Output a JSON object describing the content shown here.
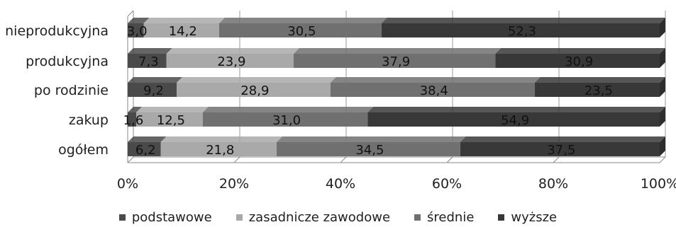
{
  "chart_data": {
    "type": "bar",
    "orientation": "horizontal",
    "stacked": "percent",
    "title": "",
    "xlabel": "",
    "ylabel": "",
    "categories": [
      "nieprodukcyjna",
      "produkcyjna",
      "po rodzinie",
      "zakup",
      "ogółem"
    ],
    "series": [
      {
        "name": "podstawowe",
        "values": [
          3.0,
          7.3,
          9.2,
          1.6,
          6.2
        ],
        "labels": [
          "3,0",
          "7,3",
          "9,2",
          "1,6",
          "6,2"
        ],
        "color": "#4a4a4a"
      },
      {
        "name": "zasadnicze zawodowe",
        "values": [
          14.2,
          23.9,
          28.9,
          12.5,
          21.8
        ],
        "labels": [
          "14,2",
          "23,9",
          "28,9",
          "12,5",
          "21,8"
        ],
        "color": "#a9a9a9"
      },
      {
        "name": "średnie",
        "values": [
          30.5,
          37.9,
          38.4,
          31.0,
          34.5
        ],
        "labels": [
          "30,5",
          "37,9",
          "38,4",
          "31,0",
          "34,5"
        ],
        "color": "#707070"
      },
      {
        "name": "wyższe",
        "values": [
          52.3,
          30.9,
          23.5,
          54.9,
          37.5
        ],
        "labels": [
          "52,3",
          "30,9",
          "23,5",
          "54,9",
          "37,5"
        ],
        "color": "#383838"
      }
    ],
    "xlim": [
      0,
      100
    ],
    "xticks": [
      "0%",
      "20%",
      "40%",
      "60%",
      "80%",
      "100%"
    ],
    "grid": true,
    "legend_position": "bottom",
    "style": "3d"
  }
}
